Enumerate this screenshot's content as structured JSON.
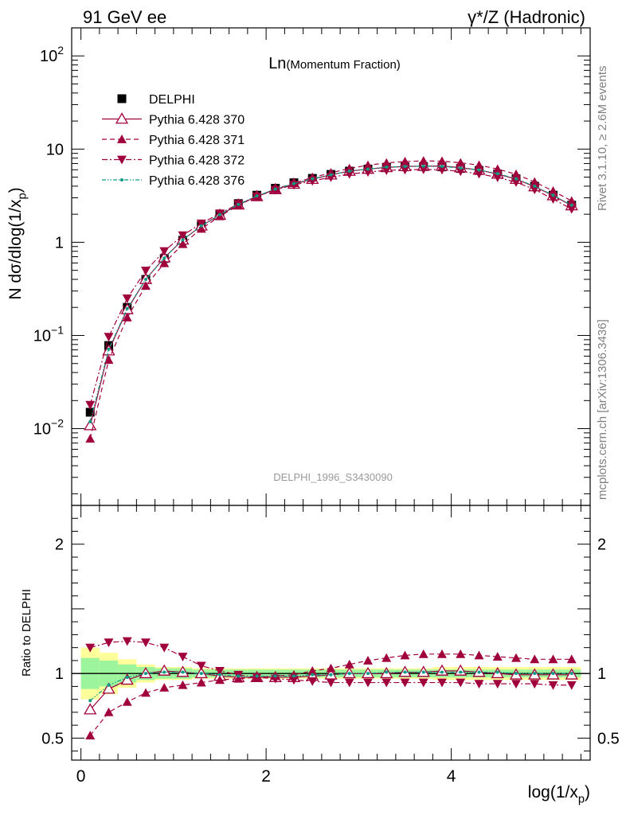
{
  "header": {
    "left": "91 GeV ee",
    "right": "γ*/Z (Hadronic)"
  },
  "side_labels": {
    "rivet": "Rivet 3.1.10, ≥ 2.6M events",
    "mcplots": "mcplots.cern.ch [arXiv:1306.3436]"
  },
  "colors": {
    "data": "#000000",
    "mc": "#a0003c",
    "mc376": "#0f9a83",
    "band_inner": "#9cf59c",
    "band_outer": "#fefe9a"
  },
  "chart_data": {
    "type": "line",
    "title": "Ln(Momentum Fraction)",
    "analysis": "DELPHI_1996_S3430090",
    "xlabel": "log(1/x_p)",
    "ylabel_top": "N dσ/dlog(1/x_p)",
    "ylabel_bottom": "Ratio to DELPHI",
    "xlim": [
      -0.1,
      5.5
    ],
    "ylim_top": [
      0.0015,
      200
    ],
    "ylim_bottom": [
      0.33,
      2.3
    ],
    "y_scale_top": "log",
    "legend_position": "top-left",
    "x_ticks": [
      "0",
      "2",
      "4"
    ],
    "y_ticks_top": [
      "10⁻²",
      "10⁻¹",
      "1",
      "10",
      "10²"
    ],
    "y_ticks_bottom": [
      "0.5",
      "1",
      "2"
    ],
    "x": [
      0.1,
      0.3,
      0.5,
      0.7,
      0.9,
      1.1,
      1.3,
      1.5,
      1.7,
      1.9,
      2.1,
      2.3,
      2.5,
      2.7,
      2.9,
      3.1,
      3.3,
      3.5,
      3.7,
      3.9,
      4.1,
      4.3,
      4.5,
      4.7,
      4.9,
      5.1,
      5.3
    ],
    "data_values": [
      0.015,
      0.078,
      0.2,
      0.4,
      0.67,
      1.05,
      1.5,
      2.0,
      2.6,
      3.2,
      3.8,
      4.35,
      4.85,
      5.35,
      5.8,
      6.1,
      6.35,
      6.45,
      6.5,
      6.45,
      6.2,
      5.9,
      5.4,
      4.8,
      4.0,
      3.2,
      2.5
    ],
    "band_inner": [
      0.12,
      0.1,
      0.07,
      0.05,
      0.04,
      0.04,
      0.03,
      0.03,
      0.03,
      0.03,
      0.03,
      0.03,
      0.03,
      0.03,
      0.03,
      0.03,
      0.03,
      0.03,
      0.03,
      0.03,
      0.03,
      0.03,
      0.03,
      0.03,
      0.03,
      0.03,
      0.03
    ],
    "band_outer": [
      0.2,
      0.16,
      0.11,
      0.07,
      0.05,
      0.05,
      0.04,
      0.04,
      0.04,
      0.04,
      0.04,
      0.04,
      0.04,
      0.04,
      0.04,
      0.04,
      0.04,
      0.04,
      0.04,
      0.05,
      0.05,
      0.05,
      0.05,
      0.05,
      0.05,
      0.05,
      0.05
    ],
    "series": [
      {
        "name": "DELPHI",
        "key": "data",
        "marker": "square",
        "ratios": [
          1,
          1,
          1,
          1,
          1,
          1,
          1,
          1,
          1,
          1,
          1,
          1,
          1,
          1,
          1,
          1,
          1,
          1,
          1,
          1,
          1,
          1,
          1,
          1,
          1,
          1,
          1
        ]
      },
      {
        "name": "Pythia 6.428 370",
        "key": "p370",
        "marker": "triangle-up-open",
        "line": "solid",
        "ratios": [
          0.72,
          0.88,
          0.95,
          1.0,
          1.02,
          1.01,
          1.0,
          0.98,
          0.97,
          0.97,
          0.97,
          0.97,
          0.98,
          0.99,
          1.0,
          1.0,
          1.0,
          1.01,
          1.01,
          1.02,
          1.02,
          1.01,
          1.0,
          0.99,
          0.99,
          0.99,
          0.99
        ]
      },
      {
        "name": "Pythia 6.428 371",
        "key": "p371",
        "marker": "triangle-up-filled",
        "line": "dashed",
        "ratios": [
          0.52,
          0.7,
          0.78,
          0.85,
          0.89,
          0.91,
          0.93,
          0.95,
          0.96,
          0.97,
          0.98,
          0.99,
          1.02,
          1.04,
          1.07,
          1.1,
          1.12,
          1.14,
          1.15,
          1.15,
          1.15,
          1.14,
          1.13,
          1.12,
          1.11,
          1.11,
          1.11
        ]
      },
      {
        "name": "Pythia 6.428 372",
        "key": "p372",
        "marker": "triangle-down-filled",
        "line": "dash-dot",
        "ratios": [
          1.2,
          1.24,
          1.25,
          1.24,
          1.2,
          1.13,
          1.06,
          1.02,
          0.99,
          0.97,
          0.96,
          0.95,
          0.94,
          0.93,
          0.93,
          0.93,
          0.93,
          0.93,
          0.93,
          0.93,
          0.93,
          0.92,
          0.92,
          0.92,
          0.92,
          0.91,
          0.91
        ]
      },
      {
        "name": "Pythia 6.428 376",
        "key": "p376",
        "marker": "dot",
        "line": "dash-dot-dot",
        "ratios": [
          0.79,
          0.91,
          0.97,
          1.0,
          1.01,
          1.01,
          1.0,
          0.99,
          0.98,
          0.98,
          0.98,
          0.98,
          0.99,
          0.99,
          1.0,
          1.0,
          1.01,
          1.01,
          1.01,
          1.01,
          1.01,
          1.01,
          1.01,
          1.0,
          1.0,
          1.0,
          1.0
        ]
      }
    ]
  }
}
